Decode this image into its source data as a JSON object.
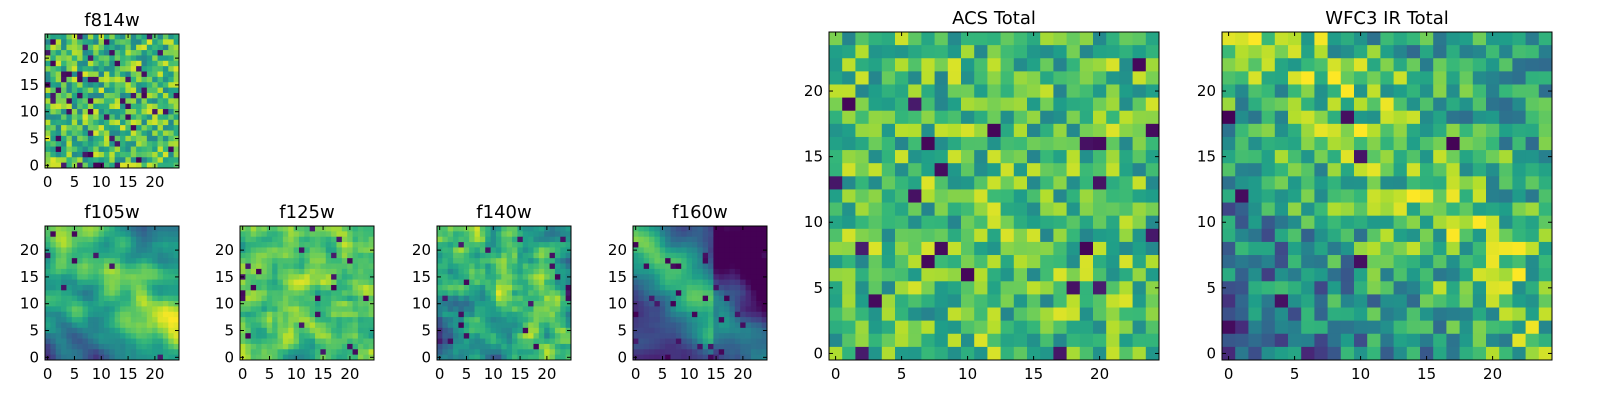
{
  "chart_data": [
    {
      "type": "heatmap",
      "title": "f814w",
      "grid": false,
      "colormap": "viridis",
      "n": 25,
      "seed": 11,
      "smooth": 0,
      "pattern": "noise",
      "dark_fraction": 0.07,
      "x_ticks": [
        0,
        5,
        10,
        15,
        20
      ],
      "y_ticks": [
        0,
        5,
        10,
        15,
        20
      ],
      "xlim": [
        -0.5,
        24.5
      ],
      "ylim": [
        -0.5,
        24.5
      ]
    },
    {
      "type": "heatmap",
      "title": "f105w",
      "grid": false,
      "colormap": "viridis",
      "n": 25,
      "seed": 23,
      "smooth": 2,
      "pattern": "diagonal",
      "dark_fraction": 0.02,
      "x_ticks": [
        0,
        5,
        10,
        15,
        20
      ],
      "y_ticks": [
        0,
        5,
        10,
        15,
        20
      ],
      "xlim": [
        -0.5,
        24.5
      ],
      "ylim": [
        -0.5,
        24.5
      ]
    },
    {
      "type": "heatmap",
      "title": "f125w",
      "grid": false,
      "colormap": "viridis",
      "n": 25,
      "seed": 37,
      "smooth": 1,
      "pattern": "noise",
      "dark_fraction": 0.03,
      "x_ticks": [
        0,
        5,
        10,
        15,
        20
      ],
      "y_ticks": [
        0,
        5,
        10,
        15,
        20
      ],
      "xlim": [
        -0.5,
        24.5
      ],
      "ylim": [
        -0.5,
        24.5
      ]
    },
    {
      "type": "heatmap",
      "title": "f140w",
      "grid": false,
      "colormap": "viridis",
      "n": 25,
      "seed": 41,
      "smooth": 1,
      "pattern": "diagonal",
      "dark_fraction": 0.03,
      "x_ticks": [
        0,
        5,
        10,
        15,
        20
      ],
      "y_ticks": [
        0,
        5,
        10,
        15,
        20
      ],
      "xlim": [
        -0.5,
        24.5
      ],
      "ylim": [
        -0.5,
        24.5
      ]
    },
    {
      "type": "heatmap",
      "title": "f160w",
      "grid": false,
      "colormap": "viridis",
      "n": 25,
      "seed": 53,
      "smooth": 2,
      "pattern": "diagonal-strong",
      "dark_fraction": 0.04,
      "x_ticks": [
        0,
        5,
        10,
        15,
        20
      ],
      "y_ticks": [
        0,
        5,
        10,
        15,
        20
      ],
      "xlim": [
        -0.5,
        24.5
      ],
      "ylim": [
        -0.5,
        24.5
      ]
    },
    {
      "type": "heatmap",
      "title": "ACS Total",
      "grid": false,
      "colormap": "viridis",
      "n": 25,
      "seed": 67,
      "smooth": 0,
      "pattern": "noise",
      "dark_fraction": 0.04,
      "x_ticks": [
        0,
        5,
        10,
        15,
        20
      ],
      "y_ticks": [
        0,
        5,
        10,
        15,
        20
      ],
      "xlim": [
        -0.5,
        24.5
      ],
      "ylim": [
        -0.5,
        24.5
      ]
    },
    {
      "type": "heatmap",
      "title": "WFC3 IR Total",
      "grid": false,
      "colormap": "viridis",
      "n": 25,
      "seed": 79,
      "smooth": 0,
      "pattern": "diagonal",
      "dark_fraction": 0.02,
      "x_ticks": [
        0,
        5,
        10,
        15,
        20
      ],
      "y_ticks": [
        0,
        5,
        10,
        15,
        20
      ],
      "xlim": [
        -0.5,
        24.5
      ],
      "ylim": [
        -0.5,
        24.5
      ]
    }
  ]
}
